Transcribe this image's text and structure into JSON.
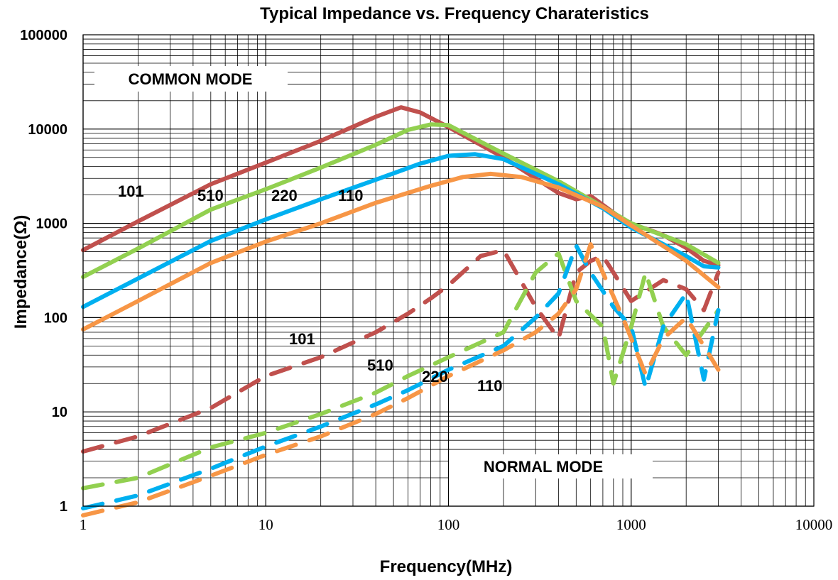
{
  "chart_data": {
    "type": "line",
    "title": "Typical Impedance vs. Frequency Charateristics",
    "xlabel": "Frequency(MHz)",
    "ylabel": "Impedance(Ω)",
    "x_scale": "log",
    "y_scale": "log",
    "xlim": [
      1,
      10000
    ],
    "ylim": [
      1,
      100000
    ],
    "x_ticks": [
      "1",
      "10",
      "100",
      "1000",
      "10000"
    ],
    "y_ticks": [
      "1",
      "10",
      "100",
      "1000",
      "10000",
      "100000"
    ],
    "grid": true,
    "annotations": {
      "common_mode": "COMMON MODE",
      "normal_mode": "NORMAL MODE",
      "common_labels": [
        "101",
        "510",
        "220",
        "110"
      ],
      "normal_labels": [
        "101",
        "510",
        "220",
        "110"
      ]
    },
    "series": [
      {
        "name": "101",
        "group": "COMMON MODE",
        "color": "#c0504d",
        "points": [
          [
            1,
            520
          ],
          [
            2,
            1050
          ],
          [
            5,
            2600
          ],
          [
            10,
            4400
          ],
          [
            20,
            7500
          ],
          [
            40,
            13500
          ],
          [
            55,
            17000
          ],
          [
            70,
            15000
          ],
          [
            100,
            10500
          ],
          [
            200,
            5000
          ],
          [
            300,
            3000
          ],
          [
            400,
            2100
          ],
          [
            500,
            1800
          ],
          [
            600,
            1950
          ],
          [
            800,
            1300
          ],
          [
            1000,
            950
          ],
          [
            1200,
            880
          ],
          [
            1500,
            750
          ],
          [
            2000,
            550
          ],
          [
            2500,
            400
          ],
          [
            3000,
            360
          ]
        ]
      },
      {
        "name": "510",
        "group": "COMMON MODE",
        "color": "#92d050",
        "points": [
          [
            1,
            270
          ],
          [
            2,
            540
          ],
          [
            5,
            1400
          ],
          [
            10,
            2300
          ],
          [
            20,
            3900
          ],
          [
            40,
            6800
          ],
          [
            60,
            9800
          ],
          [
            80,
            11200
          ],
          [
            100,
            11000
          ],
          [
            200,
            5500
          ],
          [
            400,
            2800
          ],
          [
            700,
            1500
          ],
          [
            1000,
            1000
          ],
          [
            2000,
            600
          ],
          [
            3000,
            380
          ]
        ]
      },
      {
        "name": "220",
        "group": "COMMON MODE",
        "color": "#00b0f0",
        "points": [
          [
            1,
            130
          ],
          [
            2,
            260
          ],
          [
            5,
            650
          ],
          [
            10,
            1100
          ],
          [
            20,
            1800
          ],
          [
            40,
            2900
          ],
          [
            70,
            4300
          ],
          [
            100,
            5200
          ],
          [
            140,
            5400
          ],
          [
            200,
            4800
          ],
          [
            400,
            2600
          ],
          [
            700,
            1450
          ],
          [
            1000,
            900
          ],
          [
            2000,
            450
          ],
          [
            2500,
            350
          ],
          [
            3000,
            340
          ]
        ]
      },
      {
        "name": "110",
        "group": "COMMON MODE",
        "color": "#f79646",
        "points": [
          [
            1,
            75
          ],
          [
            2,
            150
          ],
          [
            5,
            380
          ],
          [
            10,
            640
          ],
          [
            20,
            1000
          ],
          [
            40,
            1650
          ],
          [
            80,
            2500
          ],
          [
            120,
            3100
          ],
          [
            170,
            3350
          ],
          [
            250,
            3100
          ],
          [
            400,
            2400
          ],
          [
            700,
            1500
          ],
          [
            1000,
            950
          ],
          [
            2000,
            400
          ],
          [
            3000,
            210
          ]
        ]
      },
      {
        "name": "101",
        "group": "NORMAL MODE",
        "color": "#c0504d",
        "points": [
          [
            1,
            3.8
          ],
          [
            2,
            5.5
          ],
          [
            5,
            11
          ],
          [
            10,
            24
          ],
          [
            20,
            38
          ],
          [
            40,
            70
          ],
          [
            60,
            110
          ],
          [
            80,
            160
          ],
          [
            100,
            220
          ],
          [
            150,
            450
          ],
          [
            200,
            520
          ],
          [
            300,
            130
          ],
          [
            400,
            60
          ],
          [
            500,
            300
          ],
          [
            600,
            400
          ],
          [
            700,
            450
          ],
          [
            800,
            300
          ],
          [
            1000,
            150
          ],
          [
            1500,
            250
          ],
          [
            2000,
            200
          ],
          [
            2500,
            120
          ],
          [
            3000,
            300
          ]
        ]
      },
      {
        "name": "510",
        "group": "NORMAL MODE",
        "color": "#92d050",
        "points": [
          [
            1,
            1.55
          ],
          [
            2,
            2.0
          ],
          [
            5,
            4.2
          ],
          [
            10,
            6.0
          ],
          [
            20,
            9.5
          ],
          [
            40,
            16
          ],
          [
            60,
            24
          ],
          [
            100,
            38
          ],
          [
            200,
            70
          ],
          [
            300,
            300
          ],
          [
            400,
            480
          ],
          [
            500,
            150
          ],
          [
            700,
            80
          ],
          [
            800,
            20
          ],
          [
            1000,
            80
          ],
          [
            1200,
            300
          ],
          [
            1500,
            80
          ],
          [
            2000,
            40
          ],
          [
            3000,
            120
          ]
        ]
      },
      {
        "name": "220",
        "group": "NORMAL MODE",
        "color": "#00b0f0",
        "points": [
          [
            1,
            0.95
          ],
          [
            2,
            1.3
          ],
          [
            5,
            2.5
          ],
          [
            10,
            4.3
          ],
          [
            20,
            7.0
          ],
          [
            40,
            12
          ],
          [
            60,
            17
          ],
          [
            100,
            28
          ],
          [
            200,
            50
          ],
          [
            300,
            100
          ],
          [
            400,
            180
          ],
          [
            500,
            580
          ],
          [
            600,
            300
          ],
          [
            800,
            130
          ],
          [
            1000,
            80
          ],
          [
            1200,
            18
          ],
          [
            1500,
            80
          ],
          [
            2000,
            180
          ],
          [
            2500,
            22
          ],
          [
            3000,
            120
          ]
        ]
      },
      {
        "name": "110",
        "group": "NORMAL MODE",
        "color": "#f79646",
        "points": [
          [
            1,
            0.8
          ],
          [
            2,
            1.1
          ],
          [
            5,
            2.1
          ],
          [
            10,
            3.5
          ],
          [
            20,
            5.5
          ],
          [
            40,
            9.5
          ],
          [
            60,
            14
          ],
          [
            100,
            24
          ],
          [
            200,
            45
          ],
          [
            300,
            70
          ],
          [
            400,
            110
          ],
          [
            500,
            200
          ],
          [
            600,
            600
          ],
          [
            700,
            300
          ],
          [
            900,
            100
          ],
          [
            1200,
            25
          ],
          [
            1500,
            60
          ],
          [
            2000,
            100
          ],
          [
            2500,
            50
          ],
          [
            3000,
            28
          ]
        ]
      }
    ]
  }
}
